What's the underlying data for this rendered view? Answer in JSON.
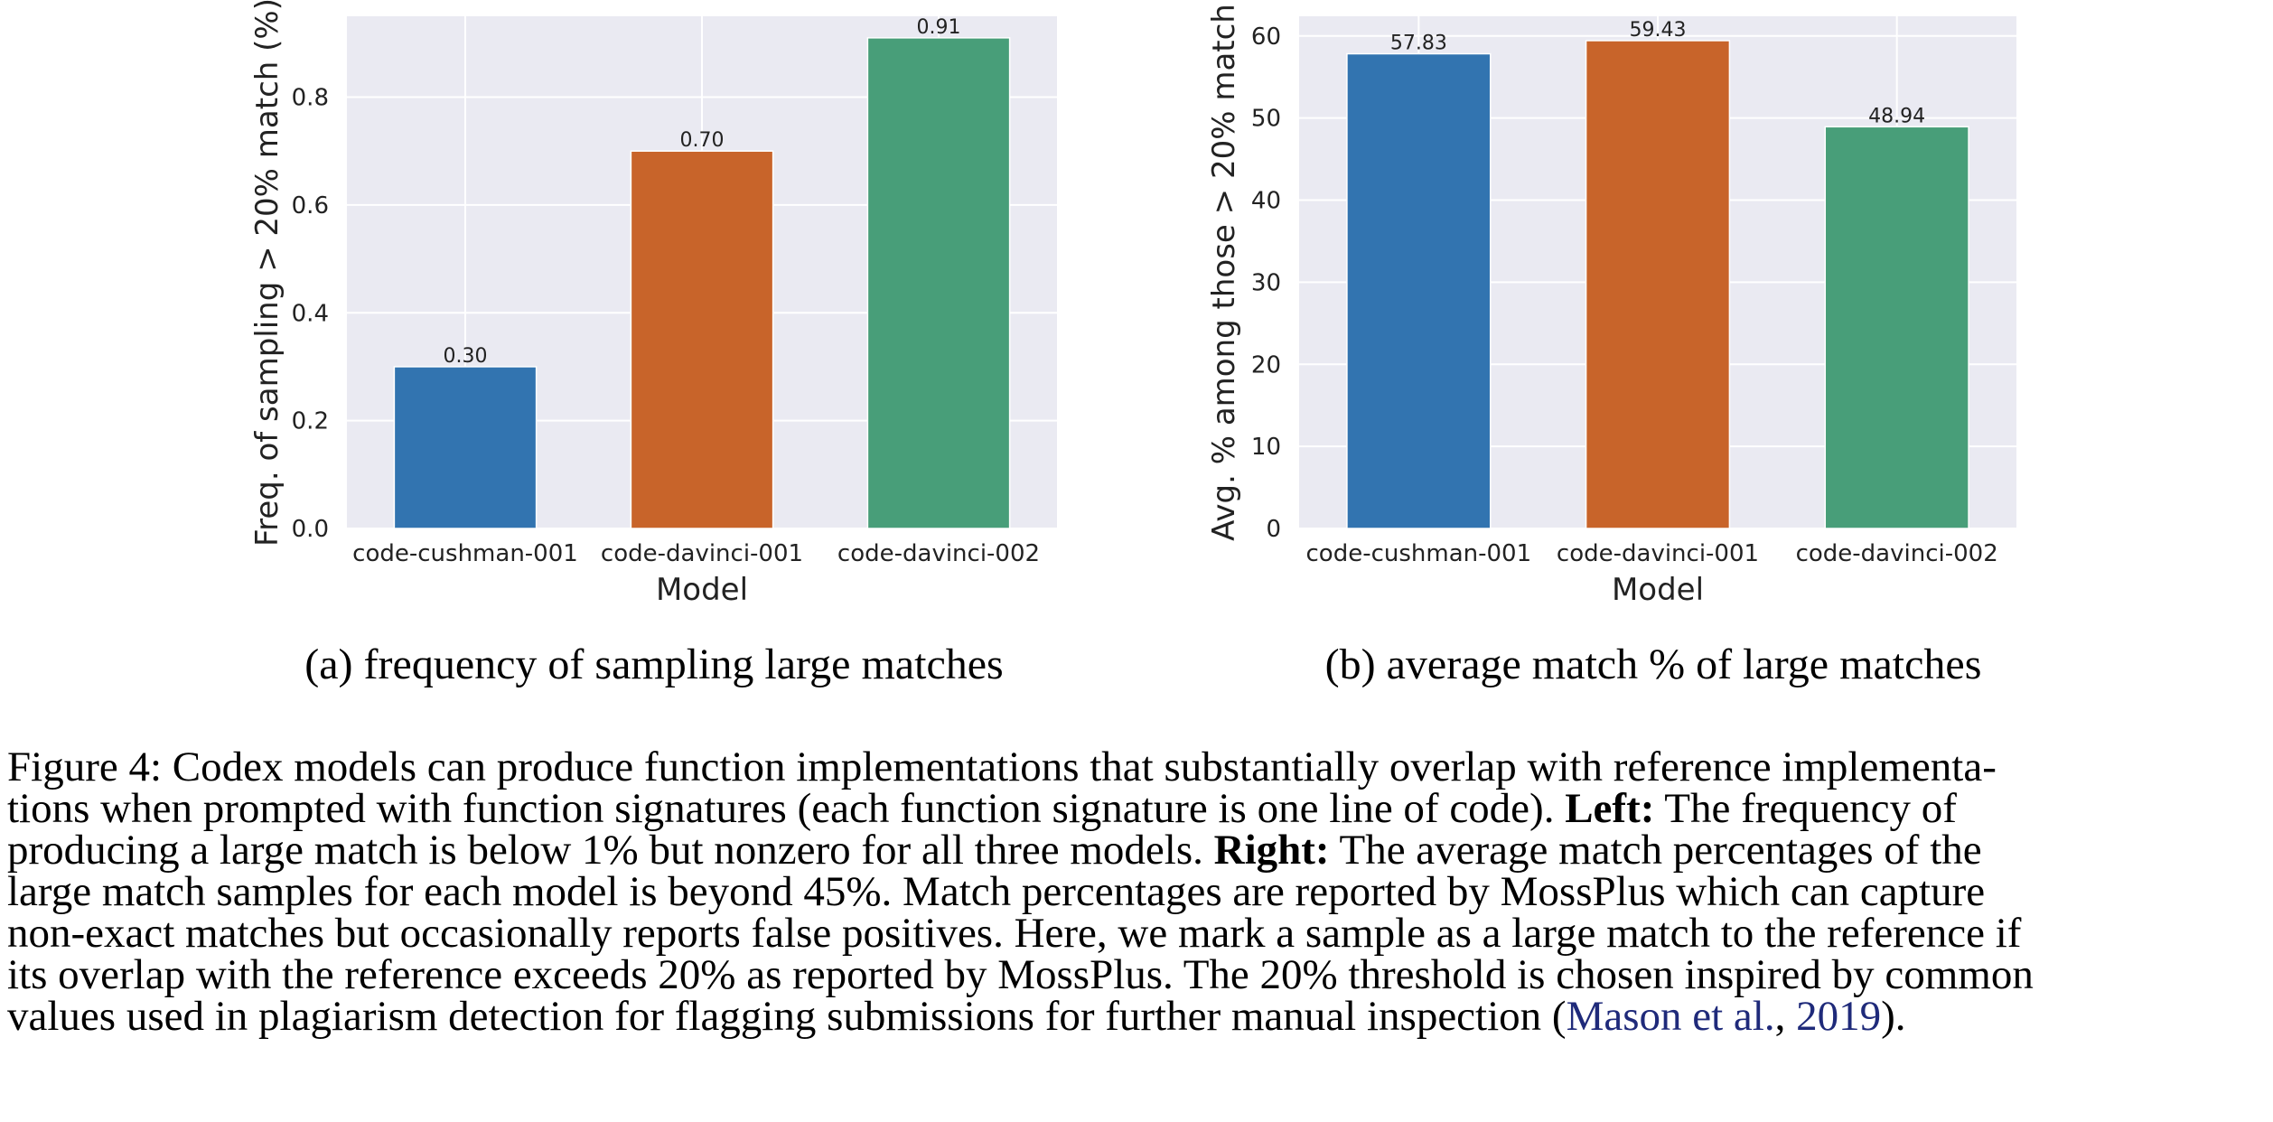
{
  "chart_data": [
    {
      "type": "bar",
      "categories": [
        "code-cushman-001",
        "code-davinci-001",
        "code-davinci-002"
      ],
      "values": [
        0.3,
        0.7,
        0.91
      ],
      "value_labels": [
        "0.30",
        "0.70",
        "0.91"
      ],
      "xlabel": "Model",
      "ylabel": "Freq. of sampling > 20% match (%)",
      "ylim": [
        0,
        0.95
      ],
      "yticks": [
        0.0,
        0.2,
        0.4,
        0.6,
        0.8
      ],
      "ytick_labels": [
        "0.0",
        "0.2",
        "0.4",
        "0.6",
        "0.8"
      ],
      "colors": [
        "#3274b0",
        "#c8642a",
        "#489e79"
      ],
      "grid": true
    },
    {
      "type": "bar",
      "categories": [
        "code-cushman-001",
        "code-davinci-001",
        "code-davinci-002"
      ],
      "values": [
        57.83,
        59.43,
        48.94
      ],
      "value_labels": [
        "57.83",
        "59.43",
        "48.94"
      ],
      "xlabel": "Model",
      "ylabel": "Avg. % among those > 20% match",
      "ylim": [
        0,
        62.4
      ],
      "yticks": [
        0,
        10,
        20,
        30,
        40,
        50,
        60
      ],
      "ytick_labels": [
        "0",
        "10",
        "20",
        "30",
        "40",
        "50",
        "60"
      ],
      "colors": [
        "#3274b0",
        "#c8642a",
        "#489e79"
      ],
      "grid": true
    }
  ],
  "subcaptions": {
    "a": "(a) frequency of sampling large matches",
    "b": "(b) average match % of large matches"
  },
  "caption": {
    "line1": "Figure 4:  Codex models can produce function implementations that substantially overlap with reference implementa-",
    "line2_a": "tions when prompted with function signatures (each function signature is one line of code). ",
    "line2_bold": "Left:",
    "line2_b": " The frequency of",
    "line3_a": "producing a large match is below 1% but nonzero for all three models. ",
    "line3_bold": "Right:",
    "line3_b": " The average match percentages of the",
    "line4": "large match samples for each model is beyond 45%. Match percentages are reported by MossPlus which can capture",
    "line5": "non-exact matches but occasionally reports false positives. Here, we mark a sample as a large match to the reference if",
    "line6": "its overlap with the reference exceeds 20% as reported by MossPlus. The 20% threshold is chosen inspired by common",
    "line7_a": "values used in plagiarism detection for flagging submissions for further manual inspection (",
    "line7_cite1": "Mason et al.",
    "line7_sep": ", ",
    "line7_cite2": "2019",
    "line7_end": ")."
  }
}
